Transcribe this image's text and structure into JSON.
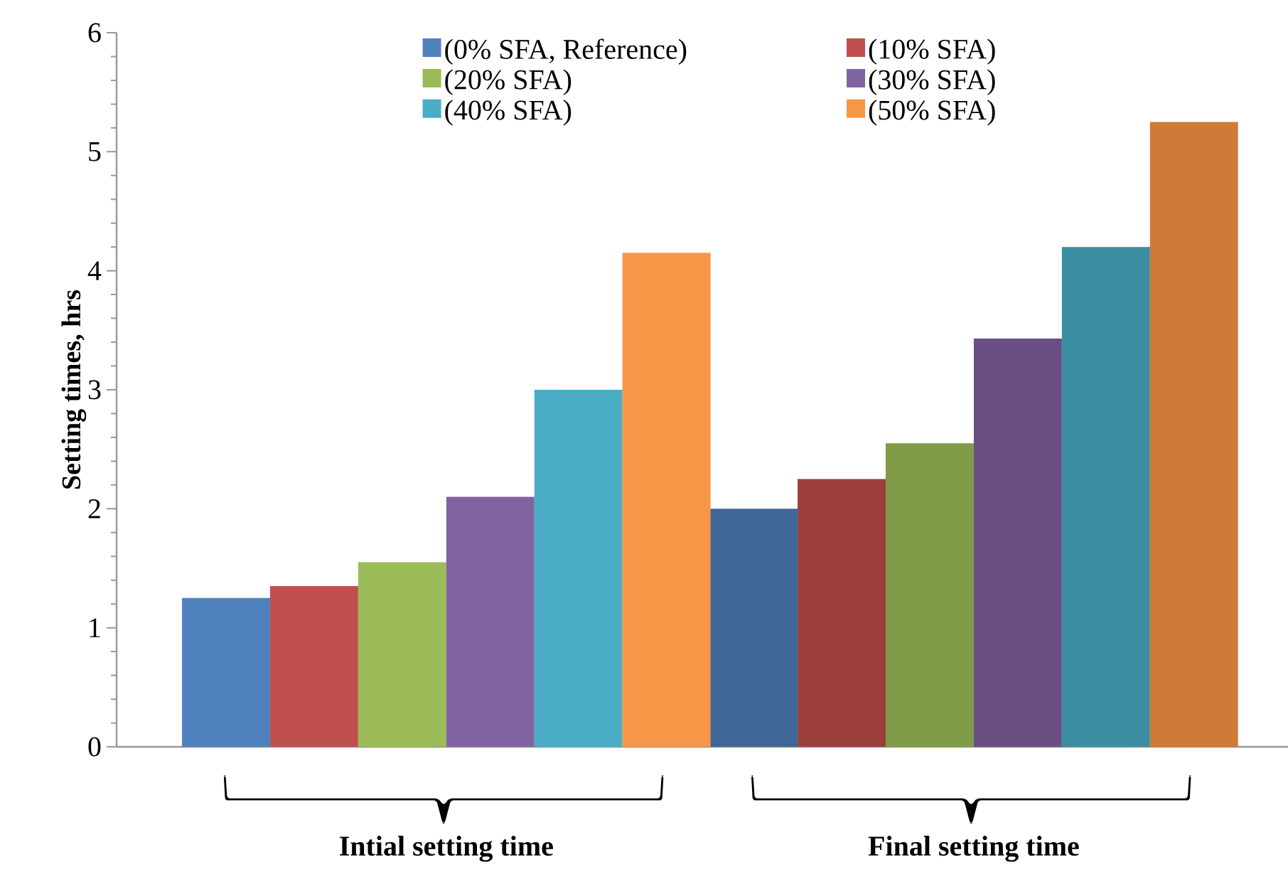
{
  "chart_data": {
    "type": "bar",
    "ylabel": "Setting times, hrs",
    "categories": [
      "Intial setting time",
      "Final setting time"
    ],
    "series": [
      {
        "name": "(0% SFA, Reference)",
        "color": "#4f81bd",
        "colors": [
          "#4f81bd",
          "#3f6797"
        ],
        "values": [
          1.25,
          2.0
        ]
      },
      {
        "name": "(10% SFA)",
        "color": "#c0504d",
        "colors": [
          "#c0504d",
          "#9c3f3c"
        ],
        "values": [
          1.35,
          2.25
        ]
      },
      {
        "name": "(20% SFA)",
        "color": "#9bbb59",
        "colors": [
          "#9bbb59",
          "#7f9b48"
        ],
        "values": [
          1.55,
          2.55
        ]
      },
      {
        "name": "(30% SFA)",
        "color": "#8064a2",
        "colors": [
          "#8064a2",
          "#6a4f85"
        ],
        "values": [
          2.1,
          3.43
        ]
      },
      {
        "name": "(40% SFA)",
        "color": "#4bacc6",
        "colors": [
          "#4bacc6",
          "#3b8ea2"
        ],
        "values": [
          3.0,
          4.2
        ]
      },
      {
        "name": "(50% SFA)",
        "color": "#f79646",
        "colors": [
          "#f79646",
          "#cd7b37"
        ],
        "values": [
          4.15,
          5.25
        ]
      }
    ],
    "ylim": [
      0,
      6
    ],
    "yticks": [
      0,
      1,
      2,
      3,
      4,
      5,
      6
    ],
    "legend": "top",
    "grid": false
  }
}
